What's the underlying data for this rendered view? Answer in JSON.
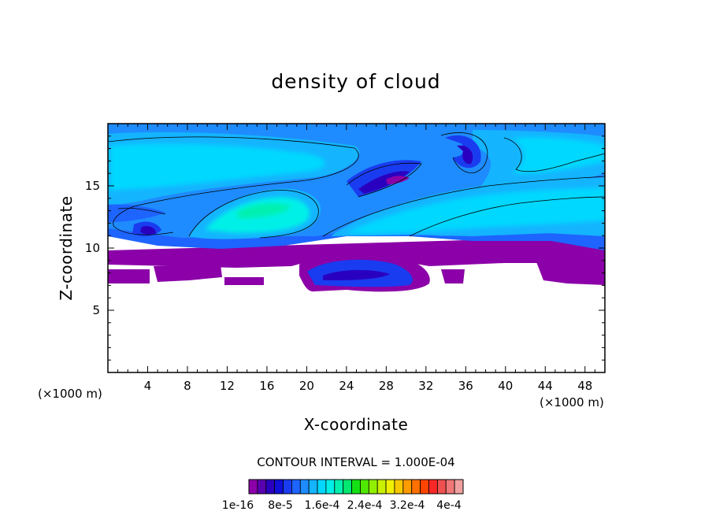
{
  "chart_data": {
    "type": "heatmap",
    "title": "density of cloud",
    "xlabel": "X-coordinate",
    "ylabel": "Z-coordinate",
    "x_unit_label": "(×1000 m)",
    "x_unit_label_right": "(×1000 m)",
    "xlim": [
      0,
      50
    ],
    "ylim": [
      0,
      20
    ],
    "x_ticks": [
      4,
      8,
      12,
      16,
      20,
      24,
      28,
      32,
      36,
      40,
      44,
      48
    ],
    "y_ticks": [
      5,
      10,
      15
    ],
    "contour_interval_text": "CONTOUR INTERVAL = 1.000E-04",
    "colorbar": {
      "labels": [
        "1e-16",
        "8e-5",
        "1.6e-4",
        "2.4e-4",
        "3.2e-4",
        "4e-4"
      ],
      "colors": [
        "#8B00A8",
        "#5A00B0",
        "#2A00C0",
        "#1010D8",
        "#1A3CF0",
        "#1E64FF",
        "#1E8CFF",
        "#14B4FF",
        "#00D8FF",
        "#00F0E8",
        "#00F0B0",
        "#00E870",
        "#14E014",
        "#50E800",
        "#90F000",
        "#C8F000",
        "#F0F000",
        "#F8C800",
        "#FF9C00",
        "#FF7000",
        "#FF4400",
        "#F82828",
        "#F05050",
        "#F07878",
        "#F0A0A0"
      ],
      "low_color": "#ffffff"
    },
    "regions_note": ""
  }
}
